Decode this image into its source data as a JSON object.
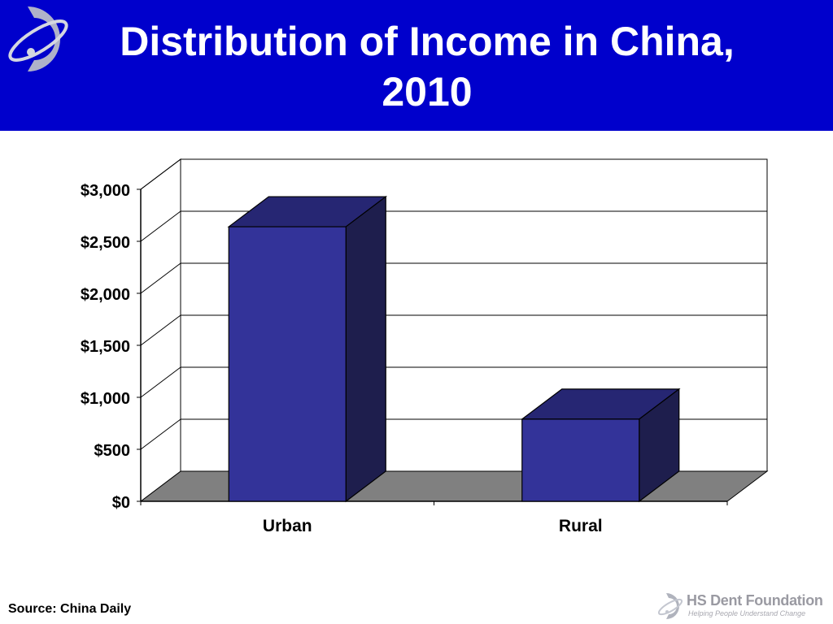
{
  "slide": {
    "title_line1": "Distribution of Income in China,",
    "title_line2": "2010",
    "source": "Source: China Daily"
  },
  "footer": {
    "brand": "HS Dent Foundation",
    "tagline": "Helping People Understand Change"
  },
  "colors": {
    "header_bg": "#0000cc",
    "bar_front": "#333399",
    "bar_top": "#262673",
    "bar_side": "#1e1e4d",
    "floor": "#808080"
  },
  "icons": {
    "header_logo": "hs-dent-orbit-logo",
    "footer_logo": "hs-dent-orbit-logo"
  },
  "chart_data": {
    "type": "bar",
    "style": "3d",
    "categories": [
      "Urban",
      "Rural"
    ],
    "values": [
      2640,
      790
    ],
    "ylim": [
      0,
      3000
    ],
    "yticks": [
      0,
      500,
      1000,
      1500,
      2000,
      2500,
      3000
    ],
    "ytick_labels": [
      "$0",
      "$500",
      "$1,000",
      "$1,500",
      "$2,000",
      "$2,500",
      "$3,000"
    ],
    "grid": true,
    "legend": false,
    "title": "",
    "xlabel": "",
    "ylabel": ""
  }
}
